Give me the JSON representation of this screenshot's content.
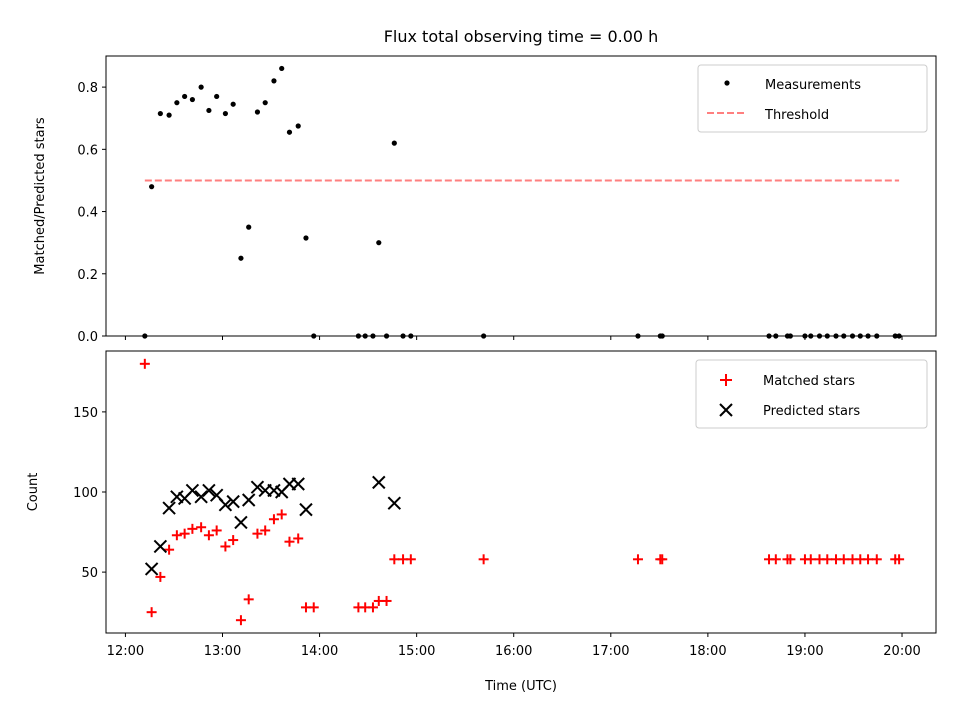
{
  "chart_data": [
    {
      "type": "scatter",
      "title": "Flux total observing time = 0.00 h",
      "xlabel": "",
      "ylabel": "Matched/Predicted stars",
      "ylim": [
        0,
        0.9
      ],
      "yticks": [
        0.0,
        0.2,
        0.4,
        0.6,
        0.8
      ],
      "ytick_labels": [
        "0.0",
        "0.2",
        "0.4",
        "0.6",
        "0.8"
      ],
      "xlim_hours": [
        11.8,
        20.35
      ],
      "legend_position": "top-right",
      "series": [
        {
          "name": "Measurements",
          "marker": "dot",
          "color": "#000000",
          "points": [
            [
              12.2,
              0.0
            ],
            [
              12.27,
              0.48
            ],
            [
              12.36,
              0.715
            ],
            [
              12.45,
              0.71
            ],
            [
              12.53,
              0.75
            ],
            [
              12.61,
              0.77
            ],
            [
              12.69,
              0.76
            ],
            [
              12.78,
              0.8
            ],
            [
              12.86,
              0.725
            ],
            [
              12.94,
              0.77
            ],
            [
              13.03,
              0.715
            ],
            [
              13.11,
              0.745
            ],
            [
              13.19,
              0.25
            ],
            [
              13.27,
              0.35
            ],
            [
              13.36,
              0.72
            ],
            [
              13.44,
              0.75
            ],
            [
              13.53,
              0.82
            ],
            [
              13.61,
              0.86
            ],
            [
              13.69,
              0.655
            ],
            [
              13.78,
              0.675
            ],
            [
              13.86,
              0.315
            ],
            [
              13.94,
              0.0
            ],
            [
              14.4,
              0.0
            ],
            [
              14.47,
              0.0
            ],
            [
              14.55,
              0.0
            ],
            [
              14.61,
              0.3
            ],
            [
              14.69,
              0.0
            ],
            [
              14.77,
              0.62
            ],
            [
              14.86,
              0.0
            ],
            [
              14.94,
              0.0
            ],
            [
              15.69,
              0.0
            ],
            [
              17.28,
              0.0
            ],
            [
              17.51,
              0.0
            ],
            [
              17.53,
              0.0
            ],
            [
              18.63,
              0.0
            ],
            [
              18.7,
              0.0
            ],
            [
              18.82,
              0.0
            ],
            [
              18.85,
              0.0
            ],
            [
              19.0,
              0.0
            ],
            [
              19.06,
              0.0
            ],
            [
              19.15,
              0.0
            ],
            [
              19.23,
              0.0
            ],
            [
              19.32,
              0.0
            ],
            [
              19.4,
              0.0
            ],
            [
              19.49,
              0.0
            ],
            [
              19.57,
              0.0
            ],
            [
              19.65,
              0.0
            ],
            [
              19.74,
              0.0
            ],
            [
              19.93,
              0.0
            ],
            [
              19.97,
              0.0
            ]
          ]
        },
        {
          "name": "Threshold",
          "marker": "dashed-line",
          "color": "#ff7f7f",
          "points": [
            [
              12.2,
              0.5
            ],
            [
              19.97,
              0.5
            ]
          ]
        }
      ]
    },
    {
      "type": "scatter",
      "title": "",
      "xlabel": "Time (UTC)",
      "ylabel": "Count",
      "ylim": [
        12,
        188
      ],
      "yticks": [
        50,
        100,
        150
      ],
      "ytick_labels": [
        "50",
        "100",
        "150"
      ],
      "xlim_hours": [
        11.8,
        20.35
      ],
      "xticks_hours": [
        12,
        13,
        14,
        15,
        16,
        17,
        18,
        19,
        20
      ],
      "xtick_labels": [
        "12:00",
        "13:00",
        "14:00",
        "15:00",
        "16:00",
        "17:00",
        "18:00",
        "19:00",
        "20:00"
      ],
      "legend_position": "top-right",
      "series": [
        {
          "name": "Matched stars",
          "marker": "plus",
          "color": "#ff0000",
          "points": [
            [
              12.2,
              180
            ],
            [
              12.27,
              25
            ],
            [
              12.36,
              47
            ],
            [
              12.45,
              64
            ],
            [
              12.53,
              73
            ],
            [
              12.61,
              74
            ],
            [
              12.69,
              77
            ],
            [
              12.78,
              78
            ],
            [
              12.86,
              73
            ],
            [
              12.94,
              76
            ],
            [
              13.03,
              66
            ],
            [
              13.11,
              70
            ],
            [
              13.19,
              20
            ],
            [
              13.27,
              33
            ],
            [
              13.36,
              74
            ],
            [
              13.44,
              76
            ],
            [
              13.53,
              83
            ],
            [
              13.61,
              86
            ],
            [
              13.69,
              69
            ],
            [
              13.78,
              71
            ],
            [
              13.86,
              28
            ],
            [
              13.94,
              28
            ],
            [
              14.4,
              28
            ],
            [
              14.47,
              28
            ],
            [
              14.55,
              28
            ],
            [
              14.61,
              32
            ],
            [
              14.69,
              32
            ],
            [
              14.77,
              58
            ],
            [
              14.86,
              58
            ],
            [
              14.94,
              58
            ],
            [
              15.69,
              58
            ],
            [
              17.28,
              58
            ],
            [
              17.51,
              58
            ],
            [
              17.53,
              58
            ],
            [
              18.63,
              58
            ],
            [
              18.7,
              58
            ],
            [
              18.82,
              58
            ],
            [
              18.85,
              58
            ],
            [
              19.0,
              58
            ],
            [
              19.06,
              58
            ],
            [
              19.15,
              58
            ],
            [
              19.23,
              58
            ],
            [
              19.32,
              58
            ],
            [
              19.4,
              58
            ],
            [
              19.49,
              58
            ],
            [
              19.57,
              58
            ],
            [
              19.65,
              58
            ],
            [
              19.74,
              58
            ],
            [
              19.93,
              58
            ],
            [
              19.97,
              58
            ]
          ]
        },
        {
          "name": "Predicted stars",
          "marker": "x",
          "color": "#000000",
          "points": [
            [
              12.27,
              52
            ],
            [
              12.36,
              66
            ],
            [
              12.45,
              90
            ],
            [
              12.53,
              97
            ],
            [
              12.61,
              96
            ],
            [
              12.69,
              101
            ],
            [
              12.78,
              97
            ],
            [
              12.86,
              101
            ],
            [
              12.94,
              98
            ],
            [
              13.03,
              92
            ],
            [
              13.11,
              94
            ],
            [
              13.19,
              81
            ],
            [
              13.27,
              95
            ],
            [
              13.36,
              103
            ],
            [
              13.44,
              101
            ],
            [
              13.53,
              101
            ],
            [
              13.61,
              100
            ],
            [
              13.69,
              105
            ],
            [
              13.78,
              105
            ],
            [
              13.86,
              89
            ],
            [
              14.61,
              106
            ],
            [
              14.77,
              93
            ]
          ]
        }
      ]
    }
  ]
}
